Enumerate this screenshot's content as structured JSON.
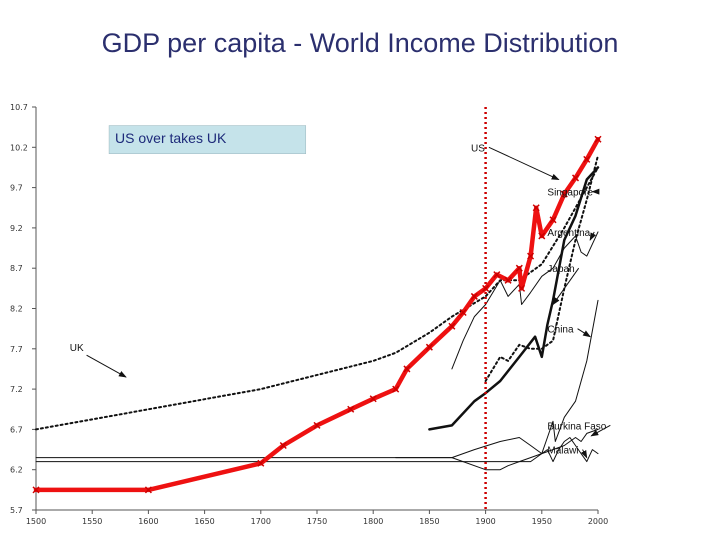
{
  "page": {
    "title": "GDP per capita - World Income Distribution"
  },
  "chart_data": {
    "type": "line",
    "title": "GDP per capita - World Income Distribution",
    "xlabel": "",
    "ylabel": "",
    "xlim": [
      1500,
      2000
    ],
    "ylim": [
      5.7,
      10.7
    ],
    "x_ticks": [
      1500,
      1550,
      1600,
      1650,
      1700,
      1750,
      1800,
      1850,
      1900,
      1950,
      2000
    ],
    "x_tick_labels": [
      "1500",
      "1550",
      "1600",
      "1650",
      "1700",
      "1750",
      "1800",
      "1850",
      "1900",
      "1950",
      "2000"
    ],
    "y_ticks": [
      5.7,
      6.2,
      6.7,
      7.2,
      7.7,
      8.2,
      8.7,
      9.2,
      9.7,
      10.2,
      10.7
    ],
    "y_tick_labels": [
      "5.7",
      "6.2",
      "6.7",
      "7.2",
      "7.7",
      "8.2",
      "8.7",
      "9.2",
      "9.7",
      "10.2",
      "10.7"
    ],
    "grid": false,
    "annotation": {
      "text": "US over takes UK",
      "x": 1900,
      "color": "#cc0000"
    },
    "series": [
      {
        "name": "US",
        "color": "#ee1111",
        "width": 4.5,
        "style": "solid",
        "x": [
          1500,
          1600,
          1700,
          1720,
          1750,
          1780,
          1800,
          1820,
          1830,
          1850,
          1870,
          1880,
          1890,
          1900,
          1910,
          1920,
          1930,
          1932,
          1940,
          1945,
          1950,
          1960,
          1970,
          1980,
          1990,
          2000
        ],
        "y": [
          5.95,
          5.95,
          6.28,
          6.5,
          6.75,
          6.95,
          7.08,
          7.2,
          7.45,
          7.72,
          7.98,
          8.15,
          8.35,
          8.45,
          8.62,
          8.55,
          8.7,
          8.45,
          8.85,
          9.45,
          9.1,
          9.3,
          9.62,
          9.82,
          10.05,
          10.3
        ],
        "label_x": 1887,
        "label_y": 10.2,
        "label_text": "US",
        "arrow_to_x": 1965,
        "arrow_to_y": 9.8
      },
      {
        "name": "UK",
        "color": "#111111",
        "width": 2,
        "style": "dotted",
        "x": [
          1500,
          1600,
          1700,
          1800,
          1820,
          1850,
          1870,
          1900,
          1913,
          1930,
          1950,
          1970,
          2000
        ],
        "y": [
          6.7,
          6.95,
          7.2,
          7.55,
          7.65,
          7.9,
          8.1,
          8.35,
          8.55,
          8.55,
          8.75,
          9.2,
          9.95
        ]
      },
      {
        "name": "Singapore",
        "color": "#111111",
        "width": 2,
        "style": "dotted",
        "x": [
          1900,
          1913,
          1920,
          1930,
          1940,
          1950,
          1960,
          1970,
          1980,
          1990,
          2000
        ],
        "y": [
          7.3,
          7.6,
          7.55,
          7.75,
          7.7,
          7.7,
          7.8,
          8.45,
          9.05,
          9.55,
          10.1
        ],
        "label_x": 1955,
        "label_y": 9.65,
        "label_text": "Singapore",
        "arrow_to_x": 1995,
        "arrow_to_y": 9.65
      },
      {
        "name": "Argentina",
        "color": "#111111",
        "width": 1,
        "style": "solid",
        "x": [
          1870,
          1880,
          1890,
          1900,
          1913,
          1920,
          1930,
          1932,
          1940,
          1950,
          1960,
          1970,
          1980,
          1985,
          1990,
          2000
        ],
        "y": [
          7.45,
          7.8,
          8.1,
          8.25,
          8.55,
          8.35,
          8.5,
          8.25,
          8.4,
          8.6,
          8.7,
          8.95,
          9.1,
          8.9,
          8.85,
          9.15
        ],
        "label_x": 1955,
        "label_y": 9.15,
        "label_text": "Argentina",
        "arrow_to_x": 1993,
        "arrow_to_y": 9.05
      },
      {
        "name": "Japan",
        "color": "#111111",
        "width": 2.5,
        "style": "solid",
        "x": [
          1850,
          1870,
          1890,
          1900,
          1913,
          1930,
          1944,
          1950,
          1955,
          1960,
          1970,
          1980,
          1990,
          2000
        ],
        "y": [
          6.7,
          6.75,
          7.05,
          7.15,
          7.3,
          7.6,
          7.85,
          7.6,
          8.0,
          8.3,
          9.05,
          9.35,
          9.8,
          9.95
        ],
        "label_x": 1955,
        "label_y": 8.7,
        "label_text": "Japan",
        "arrow_to_x": 1960,
        "arrow_to_y": 8.25
      },
      {
        "name": "China",
        "color": "#111111",
        "width": 1,
        "style": "solid",
        "x": [
          1500,
          1700,
          1820,
          1850,
          1870,
          1890,
          1913,
          1930,
          1940,
          1950,
          1955,
          1960,
          1962,
          1970,
          1980,
          1990,
          2000
        ],
        "y": [
          6.35,
          6.35,
          6.35,
          6.35,
          6.35,
          6.45,
          6.55,
          6.6,
          6.5,
          6.4,
          6.6,
          6.8,
          6.55,
          6.85,
          7.05,
          7.55,
          8.3
        ],
        "label_x": 1955,
        "label_y": 7.95,
        "label_text": "China",
        "arrow_to_x": 1993,
        "arrow_to_y": 7.85
      },
      {
        "name": "Burkina Faso",
        "color": "#111111",
        "width": 1,
        "style": "solid",
        "x": [
          1500,
          1820,
          1850,
          1870,
          1890,
          1913,
          1920,
          1930,
          1940,
          1950,
          1960,
          1970,
          1975,
          1980,
          1985,
          1990,
          2000
        ],
        "y": [
          6.3,
          6.3,
          6.3,
          6.3,
          6.3,
          6.3,
          6.3,
          6.3,
          6.3,
          6.4,
          6.45,
          6.5,
          6.55,
          6.6,
          6.55,
          6.65,
          6.7
        ],
        "label_x": 1955,
        "label_y": 6.75,
        "label_text": "Burkina Faso",
        "arrow_to_x": 1994,
        "arrow_to_y": 6.62
      },
      {
        "name": "Malawi",
        "color": "#111111",
        "width": 1,
        "style": "solid",
        "x": [
          1820,
          1850,
          1870,
          1900,
          1913,
          1920,
          1930,
          1940,
          1950,
          1955,
          1960,
          1965,
          1970,
          1975,
          1980,
          1985,
          1990,
          1995,
          2000
        ],
        "y": [
          6.35,
          6.35,
          6.35,
          6.2,
          6.2,
          6.25,
          6.3,
          6.35,
          6.4,
          6.45,
          6.3,
          6.45,
          6.55,
          6.6,
          6.5,
          6.4,
          6.3,
          6.45,
          6.4
        ],
        "label_x": 1955,
        "label_y": 6.45,
        "label_text": "Malawi",
        "arrow_to_x": 1990,
        "arrow_to_y": 6.35
      }
    ]
  }
}
